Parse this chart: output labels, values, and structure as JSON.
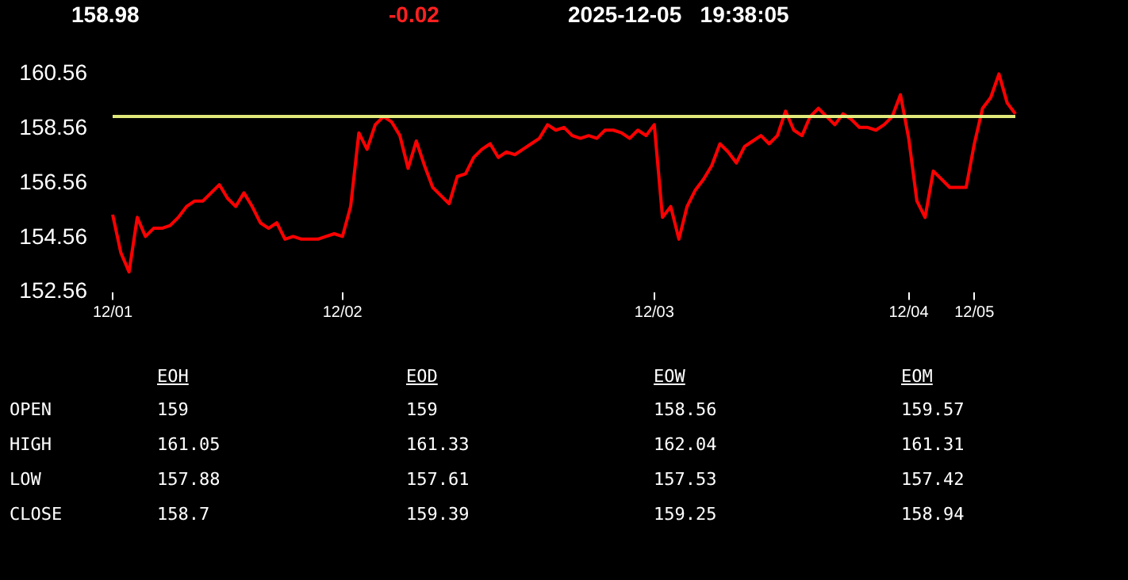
{
  "chart_data": {
    "type": "line",
    "categories": [
      "12/01",
      null,
      null,
      null,
      null,
      null,
      null,
      null,
      null,
      null,
      null,
      null,
      null,
      null,
      null,
      null,
      null,
      null,
      null,
      null,
      null,
      null,
      null,
      null,
      null,
      null,
      null,
      null,
      "12/02",
      null,
      null,
      null,
      null,
      null,
      null,
      null,
      null,
      null,
      null,
      null,
      null,
      null,
      null,
      null,
      null,
      null,
      null,
      null,
      null,
      null,
      null,
      null,
      null,
      null,
      null,
      null,
      null,
      null,
      null,
      null,
      null,
      null,
      null,
      null,
      null,
      null,
      "12/03",
      null,
      null,
      null,
      null,
      null,
      null,
      null,
      null,
      null,
      null,
      null,
      null,
      null,
      null,
      null,
      null,
      null,
      null,
      null,
      null,
      null,
      null,
      null,
      null,
      null,
      null,
      null,
      null,
      null,
      null,
      "12/04",
      null,
      null,
      null,
      null,
      null,
      null,
      null,
      "12/05",
      null,
      null,
      null,
      null,
      null
    ],
    "series": [
      {
        "color": "#ff0000",
        "values": [
          155.4,
          154.0,
          153.3,
          155.3,
          154.6,
          154.9,
          154.9,
          155.0,
          155.3,
          155.7,
          155.9,
          155.9,
          156.2,
          156.5,
          156.0,
          155.7,
          156.2,
          155.7,
          155.1,
          154.9,
          155.1,
          154.5,
          154.6,
          154.5,
          154.5,
          154.5,
          154.6,
          154.7,
          154.6,
          155.7,
          158.4,
          157.8,
          158.7,
          159.0,
          158.8,
          158.3,
          157.1,
          158.1,
          157.2,
          156.4,
          156.1,
          155.8,
          156.8,
          156.9,
          157.5,
          157.8,
          158.0,
          157.5,
          157.7,
          157.6,
          157.8,
          158.0,
          158.2,
          158.7,
          158.5,
          158.6,
          158.3,
          158.2,
          158.3,
          158.2,
          158.5,
          158.5,
          158.4,
          158.2,
          158.5,
          158.3,
          158.7,
          155.3,
          155.7,
          154.5,
          155.7,
          156.3,
          156.7,
          157.2,
          158.0,
          157.7,
          157.3,
          157.9,
          158.1,
          158.3,
          158.0,
          158.3,
          159.2,
          158.5,
          158.3,
          159.0,
          159.3,
          159.0,
          158.7,
          159.1,
          158.9,
          158.6,
          158.6,
          158.5,
          158.7,
          159.0,
          159.8,
          158.2,
          155.9,
          155.3,
          157.0,
          156.7,
          156.4,
          156.4,
          156.4,
          158.0,
          159.3,
          159.7,
          160.56,
          159.5,
          159.1
        ]
      }
    ],
    "ylim": [
      152.56,
      160.56
    ],
    "yticks": [
      152.56,
      154.56,
      156.56,
      158.56,
      160.56
    ],
    "grid": false,
    "legend": false,
    "marker": "none",
    "line_style": "solid",
    "ref_lines": [
      {
        "axis": "y",
        "value": 159,
        "color": "#e0e87a"
      }
    ],
    "annotations": [
      "158.98",
      "-0.02",
      "2025-12-05   19:38:05",
      "EOH",
      "EOD",
      "EOW",
      "EOM",
      "OPEN",
      "159",
      "159",
      "158.56",
      "159.57",
      "HIGH",
      "161.05",
      "161.33",
      "162.04",
      "161.31",
      "LOW",
      "157.88",
      "157.61",
      "157.53",
      "157.42",
      "CLOSE",
      "158.7",
      "159.39",
      "159.25",
      "158.94"
    ]
  }
}
